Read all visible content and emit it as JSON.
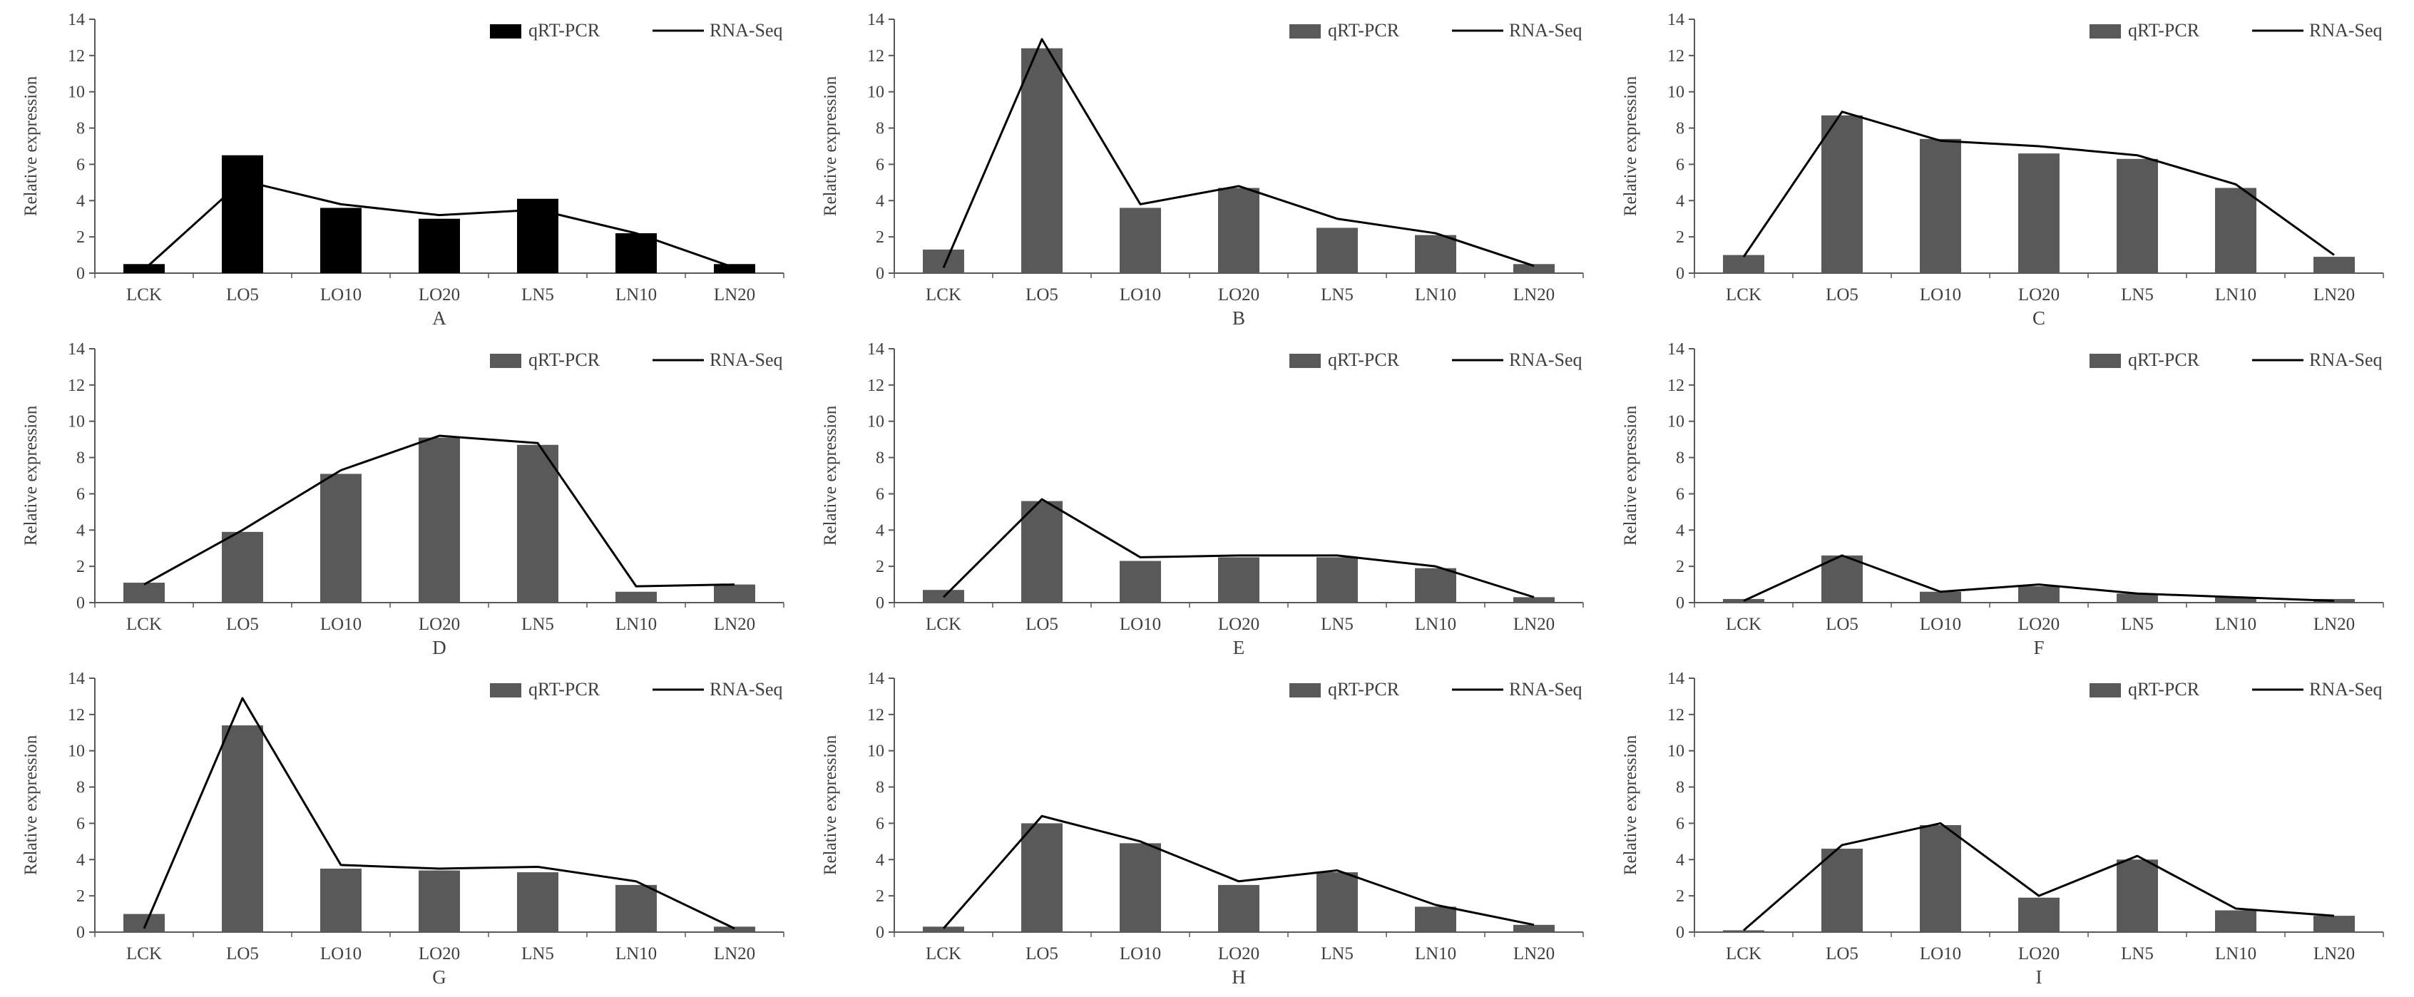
{
  "figure": {
    "ylabel": "Relative expression",
    "legend": {
      "bar_label": "qRT-PCR",
      "line_label": "RNA-Seq"
    },
    "colors": {
      "bar_default": "#595959",
      "bar_panel_a": "#000000",
      "line": "#000000",
      "axis": "#595959",
      "text": "#3f3f3f"
    }
  },
  "chart_data": [
    {
      "type": "bar",
      "panel": "A",
      "title": "",
      "xlabel": "A",
      "ylabel": "Relative expression",
      "ylim": [
        0,
        14
      ],
      "ytick_step": 2,
      "grid": false,
      "legend_position": "top-right-inside",
      "bar_color": "#000000",
      "categories": [
        "LCK",
        "LO5",
        "LO10",
        "LO20",
        "LN5",
        "LN10",
        "LN20"
      ],
      "series": [
        {
          "name": "qRT-PCR",
          "type": "bar",
          "values": [
            0.5,
            6.5,
            3.6,
            3.0,
            4.1,
            2.2,
            0.5
          ]
        },
        {
          "name": "RNA-Seq",
          "type": "line",
          "values": [
            0.2,
            5.1,
            3.8,
            3.2,
            3.5,
            2.2,
            0.3
          ]
        }
      ]
    },
    {
      "type": "bar",
      "panel": "B",
      "title": "",
      "xlabel": "B",
      "ylabel": "Relative expression",
      "ylim": [
        0,
        14
      ],
      "ytick_step": 2,
      "grid": false,
      "legend_position": "top-right-inside",
      "bar_color": "#595959",
      "categories": [
        "LCK",
        "LO5",
        "LO10",
        "LO20",
        "LN5",
        "LN10",
        "LN20"
      ],
      "series": [
        {
          "name": "qRT-PCR",
          "type": "bar",
          "values": [
            1.3,
            12.4,
            3.6,
            4.7,
            2.5,
            2.1,
            0.5
          ]
        },
        {
          "name": "RNA-Seq",
          "type": "line",
          "values": [
            0.3,
            12.9,
            3.8,
            4.8,
            3.0,
            2.2,
            0.4
          ]
        }
      ]
    },
    {
      "type": "bar",
      "panel": "C",
      "title": "",
      "xlabel": "C",
      "ylabel": "Relative expression",
      "ylim": [
        0,
        14
      ],
      "ytick_step": 2,
      "grid": false,
      "legend_position": "top-right-inside",
      "bar_color": "#595959",
      "categories": [
        "LCK",
        "LO5",
        "LO10",
        "LO20",
        "LN5",
        "LN10",
        "LN20"
      ],
      "series": [
        {
          "name": "qRT-PCR",
          "type": "bar",
          "values": [
            1.0,
            8.7,
            7.4,
            6.6,
            6.3,
            4.7,
            0.9
          ]
        },
        {
          "name": "RNA-Seq",
          "type": "line",
          "values": [
            0.9,
            8.9,
            7.3,
            7.0,
            6.5,
            4.9,
            1.0
          ]
        }
      ]
    },
    {
      "type": "bar",
      "panel": "D",
      "title": "",
      "xlabel": "D",
      "ylabel": "Relative expression",
      "ylim": [
        0,
        14
      ],
      "ytick_step": 2,
      "grid": false,
      "legend_position": "top-right-inside",
      "bar_color": "#595959",
      "categories": [
        "LCK",
        "LO5",
        "LO10",
        "LO20",
        "LN5",
        "LN10",
        "LN20"
      ],
      "series": [
        {
          "name": "qRT-PCR",
          "type": "bar",
          "values": [
            1.1,
            3.9,
            7.1,
            9.1,
            8.7,
            0.6,
            1.0
          ]
        },
        {
          "name": "RNA-Seq",
          "type": "line",
          "values": [
            1.0,
            4.0,
            7.3,
            9.2,
            8.8,
            0.9,
            1.0
          ]
        }
      ]
    },
    {
      "type": "bar",
      "panel": "E",
      "title": "",
      "xlabel": "E",
      "ylabel": "Relative expression",
      "ylim": [
        0,
        14
      ],
      "ytick_step": 2,
      "grid": false,
      "legend_position": "top-right-inside",
      "bar_color": "#595959",
      "categories": [
        "LCK",
        "LO5",
        "LO10",
        "LO20",
        "LN5",
        "LN10",
        "LN20"
      ],
      "series": [
        {
          "name": "qRT-PCR",
          "type": "bar",
          "values": [
            0.7,
            5.6,
            2.3,
            2.5,
            2.5,
            1.9,
            0.3
          ]
        },
        {
          "name": "RNA-Seq",
          "type": "line",
          "values": [
            0.3,
            5.7,
            2.5,
            2.6,
            2.6,
            2.0,
            0.3
          ]
        }
      ]
    },
    {
      "type": "bar",
      "panel": "F",
      "title": "",
      "xlabel": "F",
      "ylabel": "Relative expression",
      "ylim": [
        0,
        14
      ],
      "ytick_step": 2,
      "grid": false,
      "legend_position": "top-right-inside",
      "bar_color": "#595959",
      "categories": [
        "LCK",
        "LO5",
        "LO10",
        "LO20",
        "LN5",
        "LN10",
        "LN20"
      ],
      "series": [
        {
          "name": "qRT-PCR",
          "type": "bar",
          "values": [
            0.2,
            2.6,
            0.6,
            0.9,
            0.5,
            0.3,
            0.2
          ]
        },
        {
          "name": "RNA-Seq",
          "type": "line",
          "values": [
            0.1,
            2.6,
            0.6,
            1.0,
            0.5,
            0.3,
            0.1
          ]
        }
      ]
    },
    {
      "type": "bar",
      "panel": "G",
      "title": "",
      "xlabel": "G",
      "ylabel": "Relative expression",
      "ylim": [
        0,
        14
      ],
      "ytick_step": 2,
      "grid": false,
      "legend_position": "top-right-inside",
      "bar_color": "#595959",
      "categories": [
        "LCK",
        "LO5",
        "LO10",
        "LO20",
        "LN5",
        "LN10",
        "LN20"
      ],
      "series": [
        {
          "name": "qRT-PCR",
          "type": "bar",
          "values": [
            1.0,
            11.4,
            3.5,
            3.4,
            3.3,
            2.6,
            0.3
          ]
        },
        {
          "name": "RNA-Seq",
          "type": "line",
          "values": [
            0.2,
            12.9,
            3.7,
            3.5,
            3.6,
            2.8,
            0.2
          ]
        }
      ]
    },
    {
      "type": "bar",
      "panel": "H",
      "title": "",
      "xlabel": "H",
      "ylabel": "Relative expression",
      "ylim": [
        0,
        14
      ],
      "ytick_step": 2,
      "grid": false,
      "legend_position": "top-right-inside",
      "bar_color": "#595959",
      "categories": [
        "LCK",
        "LO5",
        "LO10",
        "LO20",
        "LN5",
        "LN10",
        "LN20"
      ],
      "series": [
        {
          "name": "qRT-PCR",
          "type": "bar",
          "values": [
            0.3,
            6.0,
            4.9,
            2.6,
            3.3,
            1.4,
            0.4
          ]
        },
        {
          "name": "RNA-Seq",
          "type": "line",
          "values": [
            0.2,
            6.4,
            5.0,
            2.8,
            3.4,
            1.5,
            0.4
          ]
        }
      ]
    },
    {
      "type": "bar",
      "panel": "I",
      "title": "",
      "xlabel": "I",
      "ylabel": "Relative expression",
      "ylim": [
        0,
        14
      ],
      "ytick_step": 2,
      "grid": false,
      "legend_position": "top-right-inside",
      "bar_color": "#595959",
      "categories": [
        "LCK",
        "LO5",
        "LO10",
        "LO20",
        "LN5",
        "LN10",
        "LN20"
      ],
      "series": [
        {
          "name": "qRT-PCR",
          "type": "bar",
          "values": [
            0.1,
            4.6,
            5.9,
            1.9,
            4.0,
            1.2,
            0.9
          ]
        },
        {
          "name": "RNA-Seq",
          "type": "line",
          "values": [
            0.1,
            4.8,
            6.0,
            2.0,
            4.2,
            1.3,
            0.9
          ]
        }
      ]
    }
  ]
}
